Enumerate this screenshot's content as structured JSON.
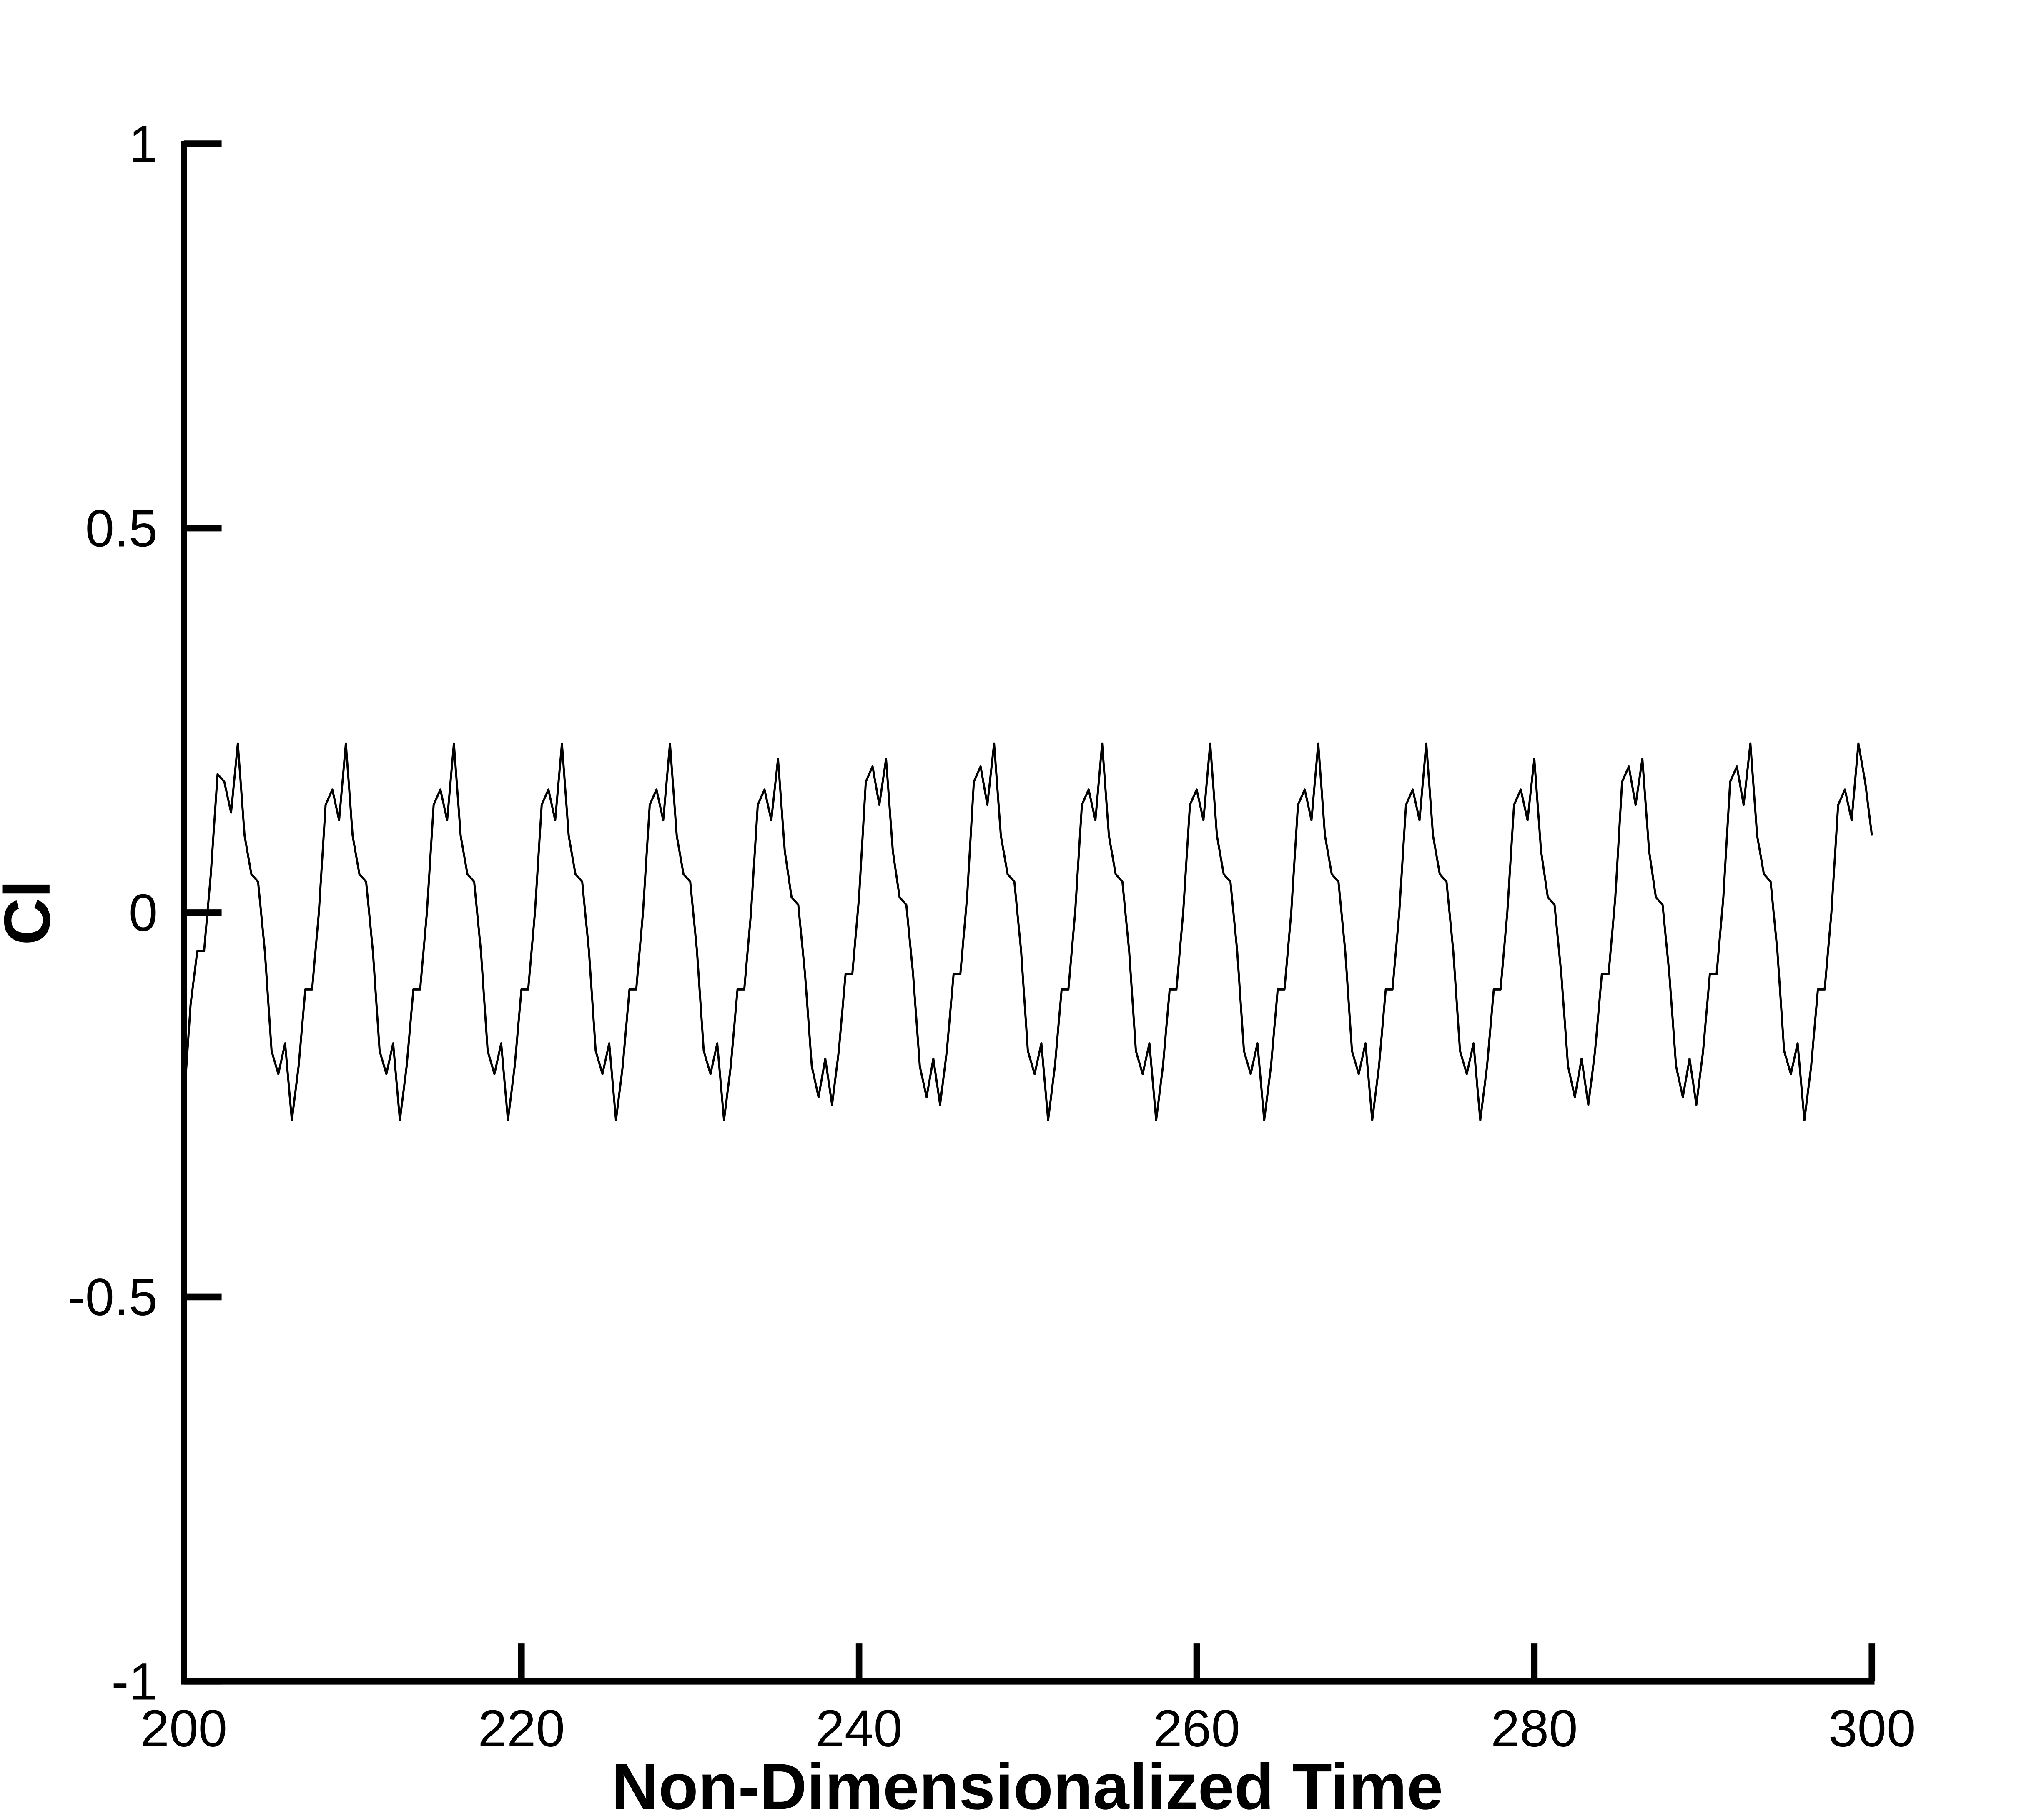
{
  "chart_data": {
    "type": "line",
    "x_label": "Non-Dimensionalized Time",
    "y_label": "Cl",
    "xlim": [
      200,
      300
    ],
    "xticks": [
      200,
      220,
      240,
      260,
      280,
      300
    ],
    "ylim": [
      -1,
      1
    ],
    "yticks": [
      -1,
      -0.5,
      0,
      0.5,
      1
    ],
    "series": [
      {
        "name": "Cl",
        "color": "#000000",
        "x": [
          200,
          200.4,
          200.8,
          201.2,
          201.6,
          202,
          202.4,
          202.8,
          203.2,
          203.6,
          204,
          204.4,
          204.8,
          205.2,
          205.6,
          206,
          206.4,
          206.8,
          207.2,
          207.6,
          208,
          208.4,
          208.8,
          209.2,
          209.6,
          210,
          210.4,
          210.8,
          211.2,
          211.6,
          212,
          212.4,
          212.8,
          213.2,
          213.6,
          214,
          214.4,
          214.8,
          215.2,
          215.6,
          216,
          216.4,
          216.8,
          217.2,
          217.6,
          218,
          218.4,
          218.8,
          219.2,
          219.6,
          220,
          220.4,
          220.8,
          221.2,
          221.6,
          222,
          222.4,
          222.8,
          223.2,
          223.6,
          224,
          224.4,
          224.8,
          225.2,
          225.6,
          226,
          226.4,
          226.8,
          227.2,
          227.6,
          228,
          228.4,
          228.8,
          229.2,
          229.6,
          230,
          230.4,
          230.8,
          231.2,
          231.6,
          232,
          232.4,
          232.8,
          233.2,
          233.6,
          234,
          234.4,
          234.8,
          235.2,
          235.6,
          236,
          236.4,
          236.8,
          237.2,
          237.6,
          238,
          238.4,
          238.8,
          239.2,
          239.6,
          240,
          240.4,
          240.8,
          241.2,
          241.6,
          242,
          242.4,
          242.8,
          243.2,
          243.6,
          244,
          244.4,
          244.8,
          245.2,
          245.6,
          246,
          246.4,
          246.8,
          247.2,
          247.6,
          248,
          248.4,
          248.8,
          249.2,
          249.6,
          250,
          250.4,
          250.8,
          251.2,
          251.6,
          252,
          252.4,
          252.8,
          253.2,
          253.6,
          254,
          254.4,
          254.8,
          255.2,
          255.6,
          256,
          256.4,
          256.8,
          257.2,
          257.6,
          258,
          258.4,
          258.8,
          259.2,
          259.6,
          260,
          260.4,
          260.8,
          261.2,
          261.6,
          262,
          262.4,
          262.8,
          263.2,
          263.6,
          264,
          264.4,
          264.8,
          265.2,
          265.6,
          266,
          266.4,
          266.8,
          267.2,
          267.6,
          268,
          268.4,
          268.8,
          269.2,
          269.6,
          270,
          270.4,
          270.8,
          271.2,
          271.6,
          272,
          272.4,
          272.8,
          273.2,
          273.6,
          274,
          274.4,
          274.8,
          275.2,
          275.6,
          276,
          276.4,
          276.8,
          277.2,
          277.6,
          278,
          278.4,
          278.8,
          279.2,
          279.6,
          280,
          280.4,
          280.8,
          281.2,
          281.6,
          282,
          282.4,
          282.8,
          283.2,
          283.6,
          284,
          284.4,
          284.8,
          285.2,
          285.6,
          286,
          286.4,
          286.8,
          287.2,
          287.6,
          288,
          288.4,
          288.8,
          289.2,
          289.6,
          290,
          290.4,
          290.8,
          291.2,
          291.6,
          292,
          292.4,
          292.8,
          293.2,
          293.6,
          294,
          294.4,
          294.8,
          295.2,
          295.6,
          296,
          296.4,
          296.8,
          297.2,
          297.6,
          298,
          298.4,
          298.8,
          299.2,
          299.6,
          300
        ],
        "values": [
          -0.25,
          -0.12,
          -0.05,
          -0.05,
          0.05,
          0.18,
          0.17,
          0.13,
          0.22,
          0.1,
          0.05,
          0.04,
          -0.05,
          -0.18,
          -0.21,
          -0.17,
          -0.27,
          -0.2,
          -0.1,
          -0.1,
          0,
          0.14,
          0.16,
          0.12,
          0.22,
          0.1,
          0.05,
          0.04,
          -0.05,
          -0.18,
          -0.21,
          -0.17,
          -0.27,
          -0.2,
          -0.1,
          -0.1,
          0,
          0.14,
          0.16,
          0.12,
          0.22,
          0.1,
          0.05,
          0.04,
          -0.05,
          -0.18,
          -0.21,
          -0.17,
          -0.27,
          -0.2,
          -0.1,
          -0.1,
          0,
          0.14,
          0.16,
          0.12,
          0.22,
          0.1,
          0.05,
          0.04,
          -0.05,
          -0.18,
          -0.21,
          -0.17,
          -0.27,
          -0.2,
          -0.1,
          -0.1,
          0,
          0.14,
          0.16,
          0.12,
          0.22,
          0.1,
          0.05,
          0.04,
          -0.05,
          -0.18,
          -0.21,
          -0.17,
          -0.27,
          -0.2,
          -0.1,
          -0.1,
          0,
          0.14,
          0.16,
          0.12,
          0.2,
          0.08,
          0.02,
          0.01,
          -0.08,
          -0.2,
          -0.24,
          -0.19,
          -0.25,
          -0.18,
          -0.08,
          -0.08,
          0.02,
          0.17,
          0.19,
          0.14,
          0.2,
          0.08,
          0.02,
          0.01,
          -0.08,
          -0.2,
          -0.24,
          -0.19,
          -0.25,
          -0.18,
          -0.08,
          -0.08,
          0.02,
          0.17,
          0.19,
          0.14,
          0.22,
          0.1,
          0.05,
          0.04,
          -0.05,
          -0.18,
          -0.21,
          -0.17,
          -0.27,
          -0.2,
          -0.1,
          -0.1,
          0,
          0.14,
          0.16,
          0.12,
          0.22,
          0.1,
          0.05,
          0.04,
          -0.05,
          -0.18,
          -0.21,
          -0.17,
          -0.27,
          -0.2,
          -0.1,
          -0.1,
          0,
          0.14,
          0.16,
          0.12,
          0.22,
          0.1,
          0.05,
          0.04,
          -0.05,
          -0.18,
          -0.21,
          -0.17,
          -0.27,
          -0.2,
          -0.1,
          -0.1,
          0,
          0.14,
          0.16,
          0.12,
          0.22,
          0.1,
          0.05,
          0.04,
          -0.05,
          -0.18,
          -0.21,
          -0.17,
          -0.27,
          -0.2,
          -0.1,
          -0.1,
          0,
          0.14,
          0.16,
          0.12,
          0.22,
          0.1,
          0.05,
          0.04,
          -0.05,
          -0.18,
          -0.21,
          -0.17,
          -0.27,
          -0.2,
          -0.1,
          -0.1,
          0,
          0.14,
          0.16,
          0.12,
          0.2,
          0.08,
          0.02,
          0.01,
          -0.08,
          -0.2,
          -0.24,
          -0.19,
          -0.25,
          -0.18,
          -0.08,
          -0.08,
          0.02,
          0.17,
          0.19,
          0.14,
          0.2,
          0.08,
          0.02,
          0.01,
          -0.08,
          -0.2,
          -0.24,
          -0.19,
          -0.25,
          -0.18,
          -0.08,
          -0.08,
          0.02,
          0.17,
          0.19,
          0.14,
          0.22,
          0.1,
          0.05,
          0.04,
          -0.05,
          -0.18,
          -0.21,
          -0.17,
          -0.27,
          -0.2,
          -0.1,
          -0.1,
          0,
          0.14,
          0.16,
          0.12,
          0.22,
          0.17,
          0.1
        ]
      }
    ]
  }
}
